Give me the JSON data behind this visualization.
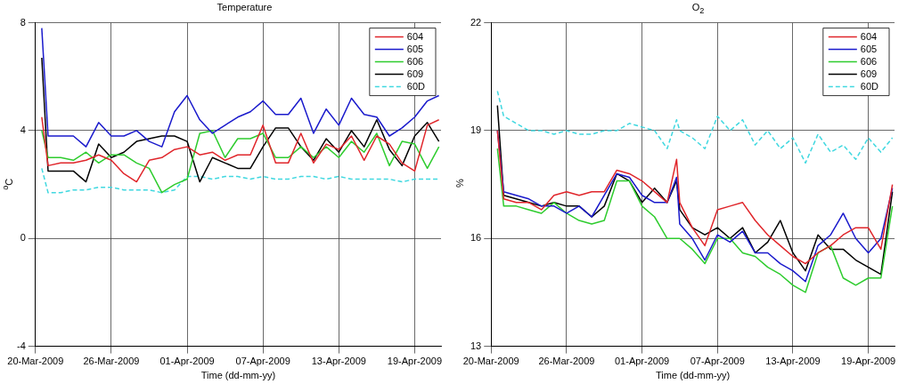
{
  "chart_data": [
    {
      "type": "line",
      "title": "Temperature",
      "xlabel": "Time (dd-mm-yy)",
      "ylabel": "$^{o}$C",
      "x": [
        "2009-03-20T12:00",
        "2009-03-21",
        "2009-03-22",
        "2009-03-23",
        "2009-03-24",
        "2009-03-25",
        "2009-03-26",
        "2009-03-27",
        "2009-03-28",
        "2009-03-29",
        "2009-03-30",
        "2009-03-31",
        "2009-04-01",
        "2009-04-02",
        "2009-04-03",
        "2009-04-04",
        "2009-04-05",
        "2009-04-06",
        "2009-04-07",
        "2009-04-08",
        "2009-04-09",
        "2009-04-10",
        "2009-04-11",
        "2009-04-12",
        "2009-04-13",
        "2009-04-14",
        "2009-04-15",
        "2009-04-16",
        "2009-04-17",
        "2009-04-18",
        "2009-04-19",
        "2009-04-20",
        "2009-04-20T22:00"
      ],
      "series": [
        {
          "name": "604",
          "color": "#e0262b",
          "values": [
            4.5,
            2.7,
            2.8,
            2.8,
            2.9,
            3.1,
            2.9,
            2.4,
            2.1,
            2.9,
            3.0,
            3.3,
            3.4,
            3.1,
            3.2,
            2.9,
            3.1,
            3.1,
            4.2,
            2.8,
            2.8,
            3.9,
            2.8,
            3.5,
            3.3,
            3.8,
            2.9,
            3.8,
            3.5,
            2.8,
            2.5,
            4.2,
            4.4
          ]
        },
        {
          "name": "605",
          "color": "#1a1acc",
          "values": [
            7.8,
            3.8,
            3.8,
            3.8,
            3.4,
            4.3,
            3.8,
            3.8,
            4.0,
            3.6,
            3.4,
            4.7,
            5.3,
            4.4,
            3.9,
            4.2,
            4.5,
            4.7,
            5.1,
            4.6,
            4.6,
            5.2,
            3.9,
            4.8,
            4.2,
            5.2,
            4.6,
            4.5,
            3.8,
            4.1,
            4.5,
            5.1,
            5.3
          ]
        },
        {
          "name": "606",
          "color": "#2ecc2e",
          "values": [
            4.0,
            3.0,
            3.0,
            2.9,
            3.2,
            2.8,
            3.1,
            3.1,
            2.8,
            2.6,
            1.7,
            2.0,
            2.2,
            3.9,
            4.0,
            3.0,
            3.7,
            3.7,
            3.9,
            3.0,
            3.0,
            3.4,
            3.0,
            3.4,
            3.0,
            3.6,
            3.2,
            3.9,
            2.7,
            3.6,
            3.5,
            2.6,
            3.4
          ]
        },
        {
          "name": "609",
          "color": "#000000",
          "values": [
            6.7,
            2.5,
            2.5,
            2.5,
            2.1,
            3.5,
            3.0,
            3.2,
            3.6,
            3.7,
            3.8,
            3.8,
            3.6,
            2.1,
            3.0,
            2.8,
            2.6,
            2.6,
            3.4,
            4.1,
            4.1,
            3.4,
            2.9,
            3.7,
            3.2,
            4.0,
            3.4,
            4.4,
            3.3,
            2.7,
            3.8,
            4.3,
            3.6
          ]
        },
        {
          "name": "60D",
          "color": "#40d8e0",
          "line_style": "dashed",
          "values": [
            2.6,
            1.7,
            1.7,
            1.8,
            1.8,
            1.9,
            1.9,
            1.8,
            1.8,
            1.8,
            1.7,
            1.8,
            2.3,
            2.3,
            2.2,
            2.3,
            2.3,
            2.2,
            2.3,
            2.2,
            2.2,
            2.3,
            2.3,
            2.2,
            2.3,
            2.2,
            2.2,
            2.2,
            2.2,
            2.1,
            2.2,
            2.2,
            2.2
          ]
        }
      ],
      "xlim": [
        "2009-03-20",
        "2009-04-21T02:00"
      ],
      "xticks": [
        {
          "value": "2009-03-20",
          "label": "20-Mar-2009"
        },
        {
          "value": "2009-03-26",
          "label": "26-Mar-2009"
        },
        {
          "value": "2009-04-01",
          "label": "01-Apr-2009"
        },
        {
          "value": "2009-04-07",
          "label": "07-Apr-2009"
        },
        {
          "value": "2009-04-13",
          "label": "13-Apr-2009"
        },
        {
          "value": "2009-04-19",
          "label": "19-Apr-2009"
        }
      ],
      "ylim": [
        -4,
        8
      ],
      "yticks": [
        -4,
        0,
        4,
        8
      ],
      "grid": true,
      "legend": "top right"
    },
    {
      "type": "line",
      "title": "O$_{2}$",
      "xlabel": "Time (dd-mm-yy)",
      "ylabel": "%",
      "x": [
        "2009-03-20T12:00",
        "2009-03-21",
        "2009-03-22",
        "2009-03-23",
        "2009-03-24",
        "2009-03-25",
        "2009-03-26",
        "2009-03-27",
        "2009-03-28",
        "2009-03-29",
        "2009-03-30",
        "2009-03-31",
        "2009-04-01",
        "2009-04-02",
        "2009-04-03",
        "2009-04-03T18:00",
        "2009-04-04",
        "2009-04-05",
        "2009-04-06",
        "2009-04-07",
        "2009-04-08",
        "2009-04-09",
        "2009-04-10",
        "2009-04-11",
        "2009-04-12",
        "2009-04-13",
        "2009-04-14",
        "2009-04-15",
        "2009-04-16",
        "2009-04-17",
        "2009-04-18",
        "2009-04-19",
        "2009-04-20",
        "2009-04-20T22:00"
      ],
      "series": [
        {
          "name": "604",
          "color": "#e0262b",
          "values": [
            19.0,
            17.1,
            17.0,
            17.0,
            16.8,
            17.2,
            17.3,
            17.2,
            17.3,
            17.3,
            17.9,
            17.8,
            17.6,
            17.3,
            17.0,
            18.2,
            17.0,
            16.3,
            15.8,
            16.8,
            16.9,
            17.0,
            16.5,
            16.1,
            15.8,
            15.5,
            15.3,
            15.6,
            15.8,
            16.1,
            16.3,
            16.3,
            15.7,
            17.5
          ]
        },
        {
          "name": "605",
          "color": "#1a1acc",
          "values": [
            19.0,
            17.3,
            17.2,
            17.1,
            16.9,
            16.9,
            16.7,
            16.9,
            16.6,
            17.2,
            17.8,
            17.7,
            17.2,
            17.0,
            17.0,
            17.7,
            16.4,
            16.0,
            15.4,
            16.1,
            15.9,
            16.2,
            15.6,
            15.6,
            15.3,
            15.1,
            14.8,
            15.8,
            16.1,
            16.7,
            16.0,
            15.6,
            16.0,
            17.4
          ]
        },
        {
          "name": "606",
          "color": "#2ecc2e",
          "values": [
            18.5,
            16.9,
            16.9,
            16.8,
            16.7,
            17.0,
            16.7,
            16.5,
            16.4,
            16.5,
            17.6,
            17.6,
            16.9,
            16.6,
            16.0,
            16.0,
            16.0,
            15.7,
            15.3,
            16.0,
            16.0,
            15.6,
            15.5,
            15.2,
            15.0,
            14.7,
            14.5,
            15.6,
            15.8,
            14.9,
            14.7,
            14.9,
            14.9,
            16.9
          ]
        },
        {
          "name": "609",
          "color": "#000000",
          "values": [
            19.7,
            17.2,
            17.1,
            17.0,
            16.9,
            17.0,
            16.9,
            16.9,
            16.6,
            16.9,
            17.8,
            17.6,
            17.0,
            17.4,
            17.0,
            17.6,
            16.8,
            16.3,
            16.1,
            16.3,
            16.0,
            16.3,
            15.6,
            15.9,
            16.5,
            15.6,
            15.1,
            16.1,
            15.7,
            15.7,
            15.4,
            15.2,
            15.0,
            17.3
          ]
        },
        {
          "name": "60D",
          "color": "#40d8e0",
          "line_style": "dashed",
          "values": [
            20.1,
            19.4,
            19.2,
            19.0,
            19.0,
            18.9,
            19.0,
            18.9,
            18.9,
            19.0,
            19.0,
            19.2,
            19.1,
            19.0,
            18.5,
            19.3,
            19.0,
            18.8,
            18.5,
            19.4,
            19.0,
            19.3,
            18.6,
            19.0,
            18.5,
            18.8,
            18.1,
            18.9,
            18.4,
            18.6,
            18.2,
            18.8,
            18.4,
            18.8
          ]
        }
      ],
      "xlim": [
        "2009-03-20",
        "2009-04-21T02:00"
      ],
      "xticks": [
        {
          "value": "2009-03-20",
          "label": "20-Mar-2009"
        },
        {
          "value": "2009-03-26",
          "label": "26-Mar-2009"
        },
        {
          "value": "2009-04-01",
          "label": "01-Apr-2009"
        },
        {
          "value": "2009-04-07",
          "label": "07-Apr-2009"
        },
        {
          "value": "2009-04-13",
          "label": "13-Apr-2009"
        },
        {
          "value": "2009-04-19",
          "label": "19-Apr-2009"
        }
      ],
      "ylim": [
        13,
        22
      ],
      "yticks": [
        13,
        16,
        19,
        22
      ],
      "grid": true,
      "legend": "top right"
    }
  ]
}
